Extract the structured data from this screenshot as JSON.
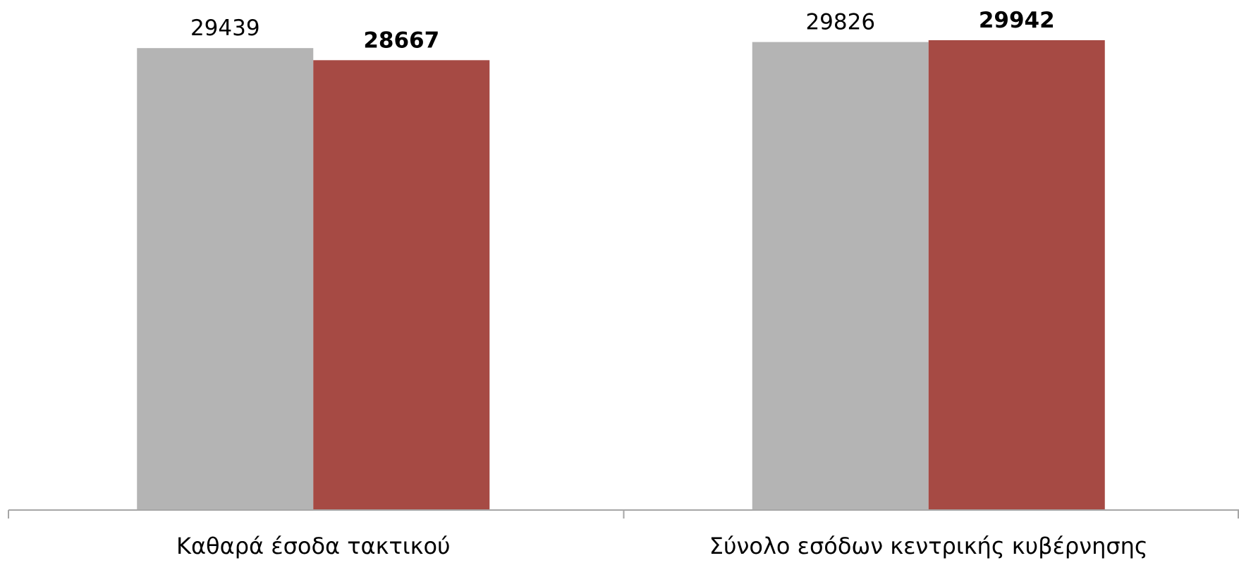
{
  "chart_data": {
    "type": "bar",
    "title": "",
    "xlabel": "",
    "ylabel": "",
    "categories": [
      "Καθαρά έσοδα τακτικού",
      "Σύνολο εσόδων κεντρικής κυβέρνησης"
    ],
    "series": [
      {
        "values": [
          29439,
          29826
        ],
        "color": "#b4b4b4",
        "label_bold": false
      },
      {
        "values": [
          28667,
          29942
        ],
        "color": "#a64a44",
        "label_bold": true
      }
    ],
    "ylim": [
      0,
      29942
    ],
    "grid": false,
    "legend": "none",
    "axis_color": "#a6a6a6"
  }
}
